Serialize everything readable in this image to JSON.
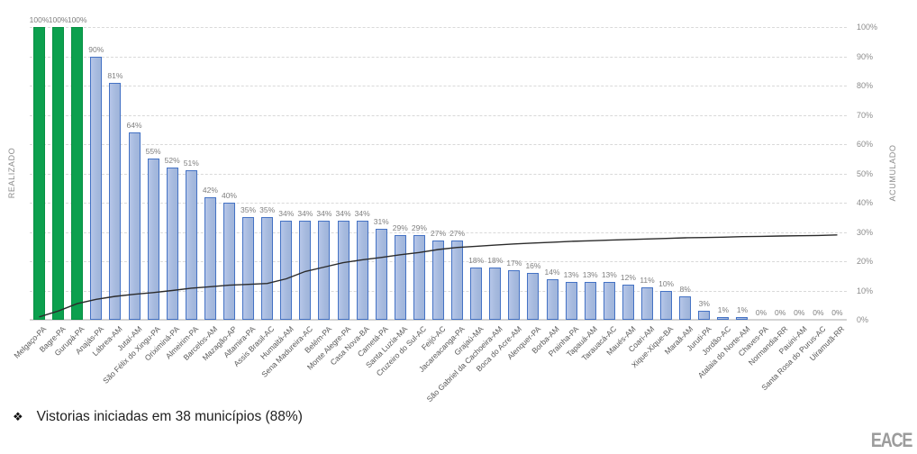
{
  "chart_data": {
    "type": "bar",
    "title": "",
    "left_axis_label": "REALIZADO",
    "right_axis_label": "ACUMULADO",
    "right_axis_ticks": [
      "0%",
      "10%",
      "20%",
      "30%",
      "40%",
      "50%",
      "60%",
      "70%",
      "80%",
      "90%",
      "100%"
    ],
    "ylim": [
      0,
      100
    ],
    "grid": "dashed horizontal every 10%",
    "legend_position": "none",
    "green_bar_count": 3,
    "categories": [
      "Melgaço-PA",
      "Bagre-PA",
      "Gurupá-PA",
      "Anajás-PA",
      "Lábrea-AM",
      "Jutaí-AM",
      "São Félix do Xingu-PA",
      "Oriximiná-PA",
      "Almeirim-PA",
      "Barcelos-AM",
      "Mazagão-AP",
      "Altamira-PA",
      "Assis Brasil-AC",
      "Humaitá-AM",
      "Sena Madureira-AC",
      "Belém-PA",
      "Monte Alegre-PA",
      "Casa Nova-BA",
      "Cametá-PA",
      "Santa Luzia-MA",
      "Cruzeiro do Sul-AC",
      "Feijó-AC",
      "Jacareacanga-PA",
      "Grajaú-MA",
      "São Gabriel da Cachoeira-AM",
      "Boca do Acre-AM",
      "Alenquer-PA",
      "Borba-AM",
      "Prainha-PA",
      "Tapauá-AM",
      "Tarauacá-AC",
      "Maués-AM",
      "Coari-AM",
      "Xique-Xique-BA",
      "Maraã-AM",
      "Juruti-PA",
      "Jordão-AC",
      "Atalaia do Norte-AM",
      "Chaves-PA",
      "Normandia-RR",
      "Pauini-AM",
      "Santa Rosa do Purus-AC",
      "Uiramutã-RR"
    ],
    "series": [
      {
        "name": "REALIZADO",
        "type": "bar",
        "values": [
          100,
          100,
          100,
          90,
          81,
          64,
          55,
          52,
          51,
          42,
          40,
          35,
          35,
          34,
          34,
          34,
          34,
          34,
          31,
          29,
          29,
          27,
          27,
          18,
          18,
          17,
          16,
          14,
          13,
          13,
          13,
          12,
          11,
          10,
          8,
          3,
          1,
          1,
          0,
          0,
          0,
          0,
          0
        ]
      },
      {
        "name": "ACUMULADO",
        "type": "line",
        "values_estimated": [
          1,
          3,
          5.5,
          7,
          8,
          8.7,
          9.3,
          10,
          10.8,
          11.3,
          11.8,
          12.1,
          12.4,
          14,
          16.5,
          18,
          19.5,
          20.5,
          21.3,
          22.2,
          23,
          24,
          24.7,
          25.1,
          25.5,
          25.9,
          26.2,
          26.5,
          26.8,
          27,
          27.2,
          27.4,
          27.6,
          27.8,
          28,
          28.1,
          28.2,
          28.4,
          28.5,
          28.6,
          28.7,
          28.8,
          29
        ]
      }
    ],
    "colors": {
      "bar_green_fill": "#0ca04e",
      "bar_green_border": "#089044",
      "bar_blue_fill": "#aebfe3",
      "bar_blue_border": "#4472c4",
      "line": "#2b2b2b",
      "gridline": "#d9d9d9",
      "axis_text": "#8c8c8c",
      "value_label_text": "#7f7f7f"
    }
  },
  "footer": {
    "bullet": "❖",
    "note": "Vistorias iniciadas em 38 municípios (88%)"
  },
  "logo": {
    "text": "EACE"
  }
}
